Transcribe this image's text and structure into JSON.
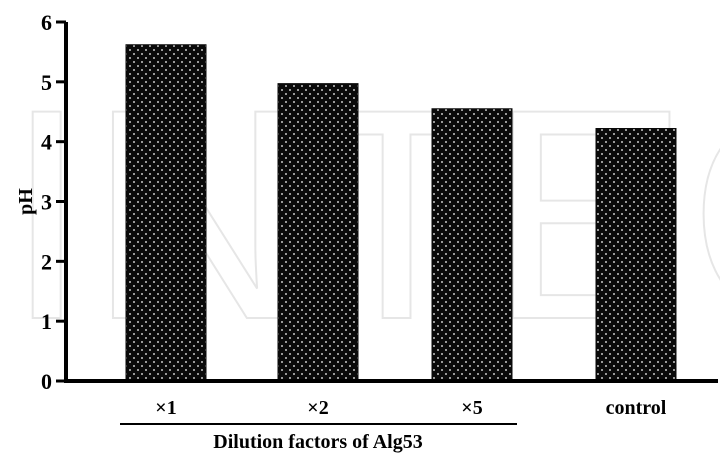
{
  "watermark": "INTECH",
  "chart_data": {
    "type": "bar",
    "categories": [
      "×1",
      "×2",
      "×5",
      "control"
    ],
    "values": [
      5.62,
      4.97,
      4.55,
      4.22
    ],
    "ylabel": "pH",
    "ylim": [
      0,
      6
    ],
    "yticks": [
      0,
      1,
      2,
      3,
      4,
      5,
      6
    ],
    "group_label": "Dilution factors of Alg53",
    "group_span": [
      "×1",
      "×5"
    ],
    "colors": {
      "bar": "#0a0a0a",
      "dots": "#ffffff",
      "axis": "#000000"
    },
    "grid": false,
    "legend": "none"
  }
}
